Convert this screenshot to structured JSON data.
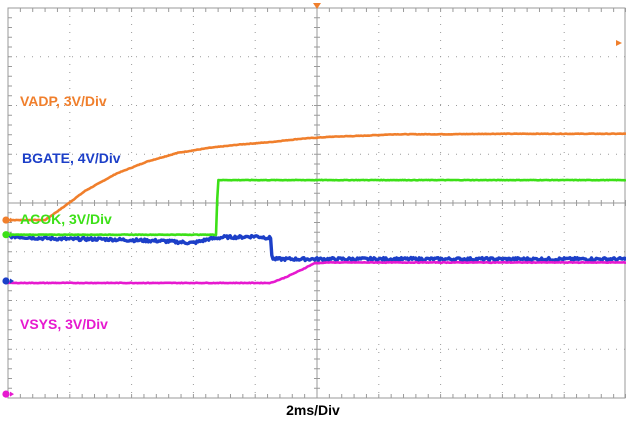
{
  "chart_data": {
    "type": "line",
    "title": "",
    "xlabel": "2ms/Div",
    "ylabel": "",
    "grid": true,
    "divisions": {
      "x": 10,
      "y": 8
    },
    "x_unit": "ms",
    "x_range": [
      0,
      20
    ],
    "series": [
      {
        "name": "VADP, 3V/Div",
        "color": "#f07f2c",
        "ground_div": 3.65,
        "noise": 0.01,
        "x": [
          0,
          1.2,
          1.8,
          2.5,
          3.5,
          4.5,
          5.5,
          6.5,
          7.5,
          8.5,
          9.5,
          10.5,
          11.5,
          12.5,
          14,
          16,
          18,
          20
        ],
        "y": [
          0,
          0,
          0.27,
          0.6,
          0.95,
          1.2,
          1.38,
          1.48,
          1.55,
          1.6,
          1.67,
          1.71,
          1.73,
          1.76,
          1.76,
          1.77,
          1.77,
          1.77
        ]
      },
      {
        "name": "BGATE, 4V/Div",
        "color": "#1c3fc8",
        "ground_div": 2.4,
        "noise": 0.06,
        "x": [
          0,
          1,
          2,
          3,
          4,
          5,
          6,
          6.5,
          7,
          7.5,
          8,
          8.5,
          8.55,
          9,
          14,
          20
        ],
        "y": [
          0.92,
          0.88,
          0.86,
          0.86,
          0.84,
          0.82,
          0.78,
          0.86,
          0.9,
          0.9,
          0.92,
          0.88,
          0.45,
          0.45,
          0.45,
          0.45
        ]
      },
      {
        "name": "ACOK, 3V/Div",
        "color": "#3ce017",
        "ground_div": 3.35,
        "noise": 0.01,
        "x": [
          0,
          6.75,
          6.78,
          20
        ],
        "y": [
          0,
          0,
          1.12,
          1.12
        ]
      },
      {
        "name": "VSYS, 3V/Div",
        "color": "#e619cf",
        "ground_div": 0.08,
        "noise": 0.012,
        "x": [
          0,
          8.5,
          9.0,
          9.5,
          9.9,
          10.3,
          20
        ],
        "y": [
          2.28,
          2.28,
          2.4,
          2.55,
          2.68,
          2.7,
          2.7
        ]
      }
    ],
    "markers": [
      {
        "color": "#f07f2c",
        "div": 3.65
      },
      {
        "color": "#1c3fc8",
        "div": 2.4
      },
      {
        "color": "#3ce017",
        "div": 3.35
      },
      {
        "color": "#e619cf",
        "div": 0.08
      }
    ],
    "trigger_color": "#f07f2c"
  }
}
